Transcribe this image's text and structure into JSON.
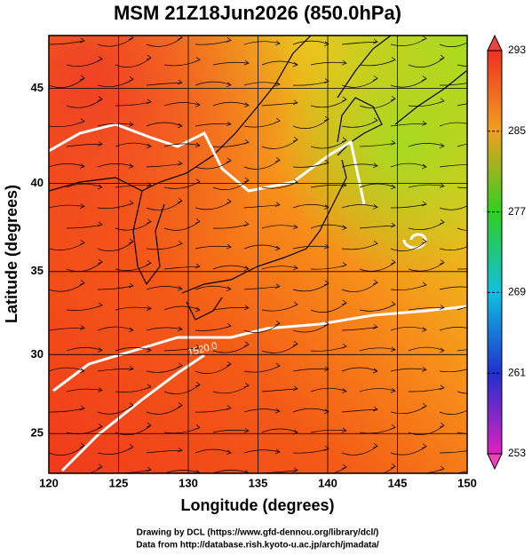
{
  "title": "MSM 21Z18Jun2026 (850.0hPa)",
  "map": {
    "xlabel": "Longitude (degrees)",
    "ylabel": "Latitude  (degrees)",
    "xlim": [
      120,
      150
    ],
    "ylim": [
      22.4,
      47.6
    ],
    "projection": "mercator",
    "xticks": [
      120,
      125,
      130,
      135,
      140,
      145,
      150
    ],
    "yticks": [
      25,
      30,
      35,
      40,
      45
    ],
    "contour_label": "1520.0"
  },
  "colorbar": {
    "range": [
      253,
      293
    ],
    "ticks": [
      253,
      261,
      269,
      277,
      285,
      293
    ]
  },
  "footer": [
    "Drawing by DCL (https://www.gfd-dennou.org/library/dcl/)",
    "Data from http://database.rish.kyoto-u.ac.jp/arch/jmadata/"
  ]
}
